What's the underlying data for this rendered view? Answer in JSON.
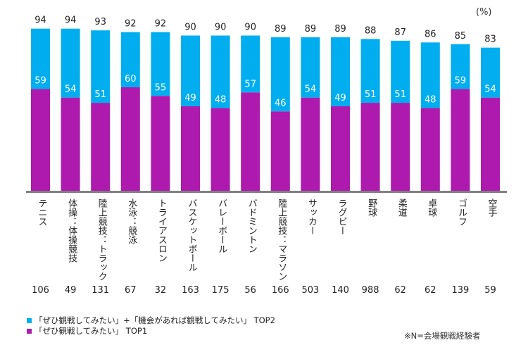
{
  "colors": {
    "top2": "#00aeef",
    "top1": "#ae1aad",
    "axis": "#808080",
    "inner_label": "#ffffff",
    "outer_label": "#222222"
  },
  "unit_label": "(%)",
  "n_values": [
    "106",
    "49",
    "131",
    "67",
    "32",
    "163",
    "175",
    "56",
    "166",
    "503",
    "140",
    "988",
    "62",
    "62",
    "139",
    "59"
  ],
  "legend": [
    {
      "key": "top2",
      "label": "「ぜひ観戦してみたい」+「機会があれば観戦してみたい」 TOP2"
    },
    {
      "key": "top1",
      "label": "「ぜひ観戦してみたい」 TOP1"
    }
  ],
  "note": "※N=会場観戦経験者",
  "chart_data": {
    "type": "bar",
    "title": "",
    "xlabel": "",
    "ylabel": "(%)",
    "ylim": [
      0,
      100
    ],
    "grid": false,
    "legend_position": "bottom-left",
    "categories": [
      "テニス",
      "体操：体操競技",
      "陸上競技：トラック",
      "水泳：競泳",
      "トライアスロン",
      "バスケットボール",
      "バレーボール",
      "バドミントン",
      "陸上競技：マラソン",
      "サッカー",
      "ラグビー",
      "野球",
      "柔道",
      "卓球",
      "ゴルフ",
      "空手"
    ],
    "series": [
      {
        "name": "「ぜひ観戦してみたい」+「機会があれば観戦してみたい」 TOP2",
        "color": "#00aeef",
        "values": [
          94,
          94,
          93,
          92,
          92,
          90,
          90,
          90,
          89,
          89,
          89,
          88,
          87,
          86,
          85,
          83
        ]
      },
      {
        "name": "「ぜひ観戦してみたい」 TOP1",
        "color": "#ae1aad",
        "values": [
          59,
          54,
          51,
          60,
          55,
          49,
          48,
          57,
          46,
          54,
          49,
          51,
          51,
          48,
          59,
          54
        ]
      }
    ],
    "n_label_note": "※N=会場観戦経験者",
    "n": [
      106,
      49,
      131,
      67,
      32,
      163,
      175,
      56,
      166,
      503,
      140,
      988,
      62,
      62,
      139,
      59
    ]
  }
}
